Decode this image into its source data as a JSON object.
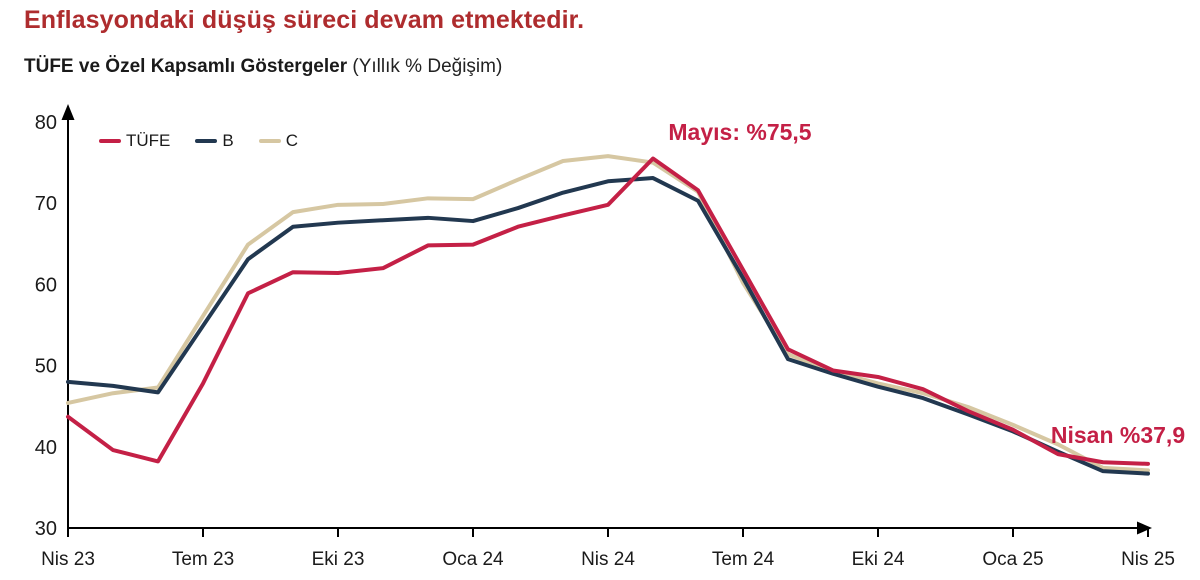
{
  "header": {
    "title": "Enflasyondaki düşüş süreci devam etmektedir.",
    "subtitle_bold": "TÜFE ve Özel Kapsamlı Göstergeler",
    "subtitle_normal": " (Yıllık % Değişim)"
  },
  "legend": {
    "tufe": "TÜFE",
    "b": "B",
    "c": "C"
  },
  "annotations": {
    "peak": "Mayıs: %75,5",
    "last": "Nisan %37,9"
  },
  "colors": {
    "title_red": "#ae2c2e",
    "annotation_red": "#c42046",
    "tufe_line": "#c42046",
    "b_line": "#223850",
    "c_line": "#d6c7a2",
    "axis": "#000000",
    "tick_text": "#1b1b1b"
  },
  "chart_data": {
    "type": "line",
    "title": "TÜFE ve Özel Kapsamlı Göstergeler (Yıllık % Değişim)",
    "x": [
      "Nis 23",
      "May 23",
      "Haz 23",
      "Tem 23",
      "Ağu 23",
      "Eyl 23",
      "Eki 23",
      "Kas 23",
      "Ara 23",
      "Oca 24",
      "Şub 24",
      "Mar 24",
      "Nis 24",
      "May 24",
      "Haz 24",
      "Tem 24",
      "Ağu 24",
      "Eyl 24",
      "Eki 24",
      "Kas 24",
      "Ara 24",
      "Oca 25",
      "Şub 25",
      "Mar 25",
      "Nis 25"
    ],
    "series": [
      {
        "key": "tufe",
        "name": "TÜFE",
        "color": "#c42046",
        "values": [
          43.7,
          39.6,
          38.2,
          47.8,
          58.9,
          61.5,
          61.4,
          62.0,
          64.8,
          64.9,
          67.1,
          68.5,
          69.8,
          75.5,
          71.6,
          61.8,
          52.0,
          49.4,
          48.6,
          47.1,
          44.4,
          42.1,
          39.1,
          38.1,
          37.9
        ]
      },
      {
        "key": "b",
        "name": "B",
        "color": "#223850",
        "values": [
          48.0,
          47.5,
          46.7,
          54.9,
          63.1,
          67.1,
          67.6,
          67.9,
          68.2,
          67.8,
          69.4,
          71.3,
          72.7,
          73.1,
          70.3,
          60.8,
          50.8,
          49.0,
          47.4,
          46.0,
          44.0,
          41.9,
          39.4,
          37.0,
          36.7
        ]
      },
      {
        "key": "c",
        "name": "C",
        "color": "#d6c7a2",
        "values": [
          45.4,
          46.6,
          47.3,
          56.1,
          64.9,
          68.9,
          69.8,
          69.9,
          70.6,
          70.5,
          72.9,
          75.2,
          75.8,
          75.0,
          71.4,
          60.2,
          51.4,
          49.3,
          47.8,
          46.6,
          44.9,
          42.7,
          40.3,
          37.4,
          37.1
        ]
      }
    ],
    "ylim": [
      30,
      80
    ],
    "yticks": [
      80,
      70,
      60,
      50,
      40,
      30
    ],
    "xtick_labels": [
      "Nis 23",
      "Tem 23",
      "Eki 23",
      "Oca 24",
      "Nis 24",
      "Tem 24",
      "Eki 24",
      "Oca 25",
      "Nis 25"
    ],
    "xtick_every": 3,
    "grid": false,
    "legend_position": "top-left",
    "annotated_points": [
      {
        "series": "TÜFE",
        "x": "May 24",
        "value": 75.5,
        "label": "Mayıs: %75,5"
      },
      {
        "series": "TÜFE",
        "x": "Nis 25",
        "value": 37.9,
        "label": "Nisan %37,9"
      }
    ]
  }
}
